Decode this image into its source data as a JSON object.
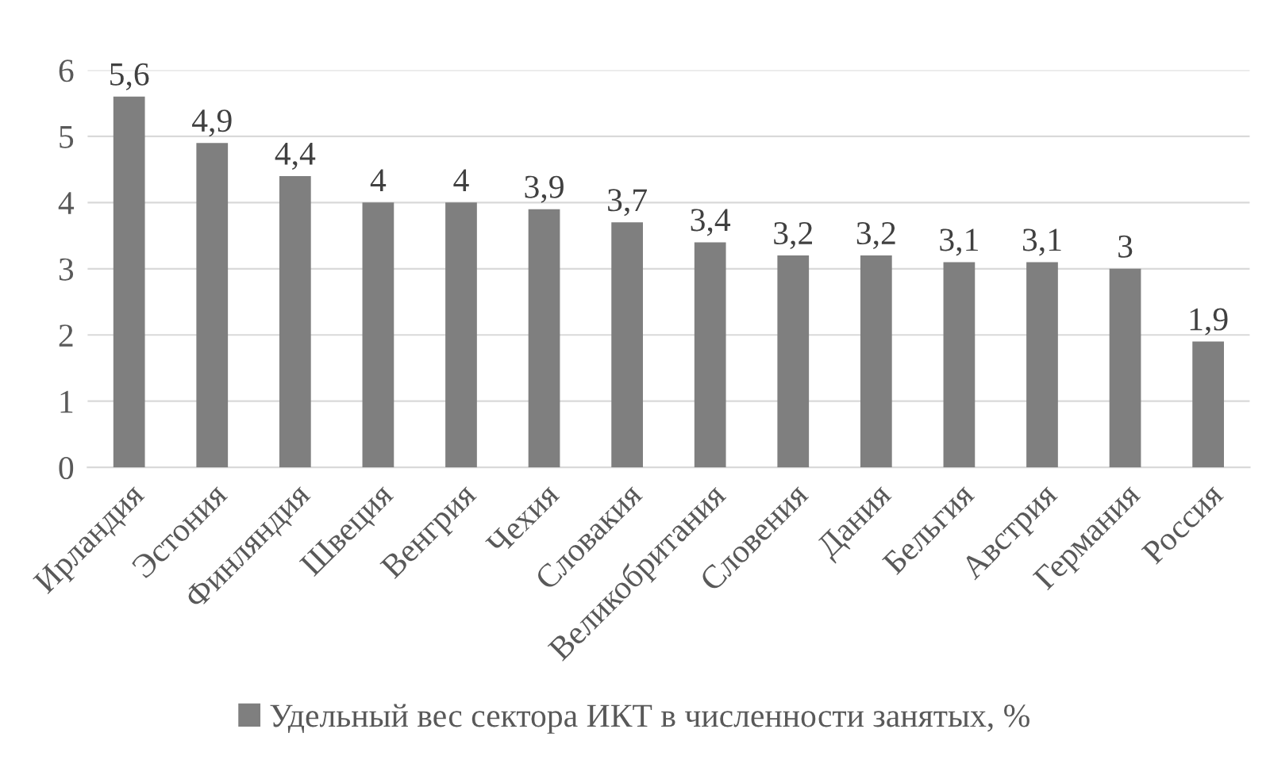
{
  "chart_data": {
    "type": "bar",
    "categories": [
      "Ирландия",
      "Эстония",
      "Финляндия",
      "Швеция",
      "Венгрия",
      "Чехия",
      "Словакия",
      "Великобритания",
      "Словения",
      "Дания",
      "Бельгия",
      "Австрия",
      "Германия",
      "Россия"
    ],
    "series": [
      {
        "name": "Удельный вес сектора ИКТ в численности занятых, %",
        "color": "#7f7f7f",
        "values": [
          5.6,
          4.9,
          4.4,
          4,
          4,
          3.9,
          3.7,
          3.4,
          3.2,
          3.2,
          3.1,
          3.1,
          3,
          1.9
        ],
        "value_labels": [
          "5,6",
          "4,9",
          "4,4",
          "4",
          "4",
          "3,9",
          "3,7",
          "3,4",
          "3,2",
          "3,2",
          "3,1",
          "3,1",
          "3",
          "1,9"
        ]
      }
    ],
    "ylim": [
      0,
      6
    ],
    "yticks": [
      0,
      1,
      2,
      3,
      4,
      5,
      6
    ],
    "grid": "y",
    "legend": "bottom"
  }
}
